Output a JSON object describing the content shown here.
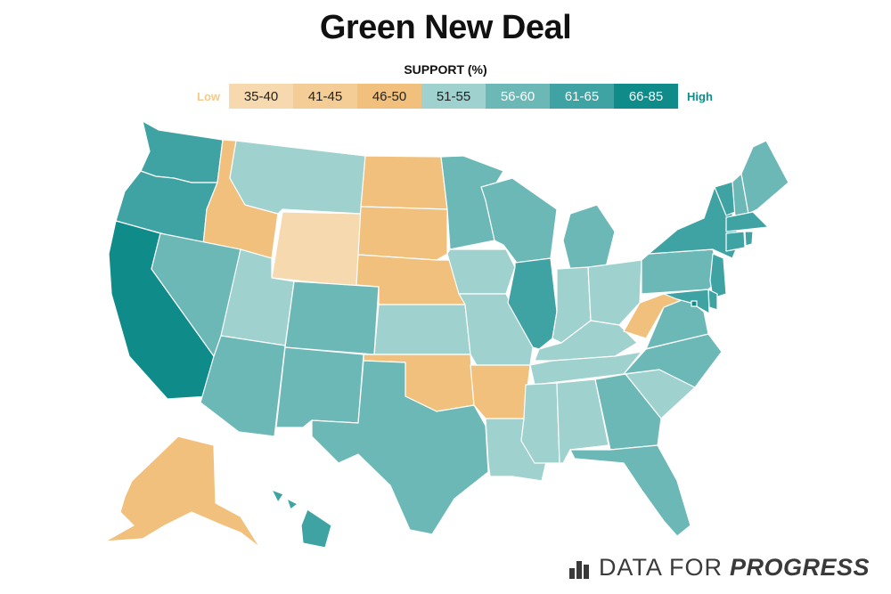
{
  "title": "Green New Deal",
  "legend": {
    "title": "SUPPORT (%)",
    "low_label": "Low",
    "high_label": "High",
    "low_color": "#f3c98c",
    "high_color": "#0f8c89",
    "bins": [
      {
        "label": "35-40",
        "color": "#f6d9ae",
        "text_color": "#222222"
      },
      {
        "label": "41-45",
        "color": "#f3cd95",
        "text_color": "#222222"
      },
      {
        "label": "46-50",
        "color": "#f1c07c",
        "text_color": "#222222"
      },
      {
        "label": "51-55",
        "color": "#9fd1ce",
        "text_color": "#222222"
      },
      {
        "label": "56-60",
        "color": "#6bb8b7",
        "text_color": "#ffffff"
      },
      {
        "label": "61-65",
        "color": "#3ea3a2",
        "text_color": "#ffffff"
      },
      {
        "label": "66-85",
        "color": "#0f8c89",
        "text_color": "#ffffff"
      }
    ]
  },
  "states": [
    {
      "state": "WA",
      "bin": 5
    },
    {
      "state": "OR",
      "bin": 5
    },
    {
      "state": "CA",
      "bin": 6
    },
    {
      "state": "ID",
      "bin": 2
    },
    {
      "state": "NV",
      "bin": 4
    },
    {
      "state": "MT",
      "bin": 3
    },
    {
      "state": "WY",
      "bin": 0
    },
    {
      "state": "UT",
      "bin": 3
    },
    {
      "state": "AZ",
      "bin": 4
    },
    {
      "state": "CO",
      "bin": 4
    },
    {
      "state": "NM",
      "bin": 4
    },
    {
      "state": "ND",
      "bin": 2
    },
    {
      "state": "SD",
      "bin": 2
    },
    {
      "state": "NE",
      "bin": 2
    },
    {
      "state": "KS",
      "bin": 3
    },
    {
      "state": "OK",
      "bin": 2
    },
    {
      "state": "TX",
      "bin": 4
    },
    {
      "state": "MN",
      "bin": 4
    },
    {
      "state": "IA",
      "bin": 3
    },
    {
      "state": "MO",
      "bin": 3
    },
    {
      "state": "AR",
      "bin": 2
    },
    {
      "state": "LA",
      "bin": 3
    },
    {
      "state": "WI",
      "bin": 4
    },
    {
      "state": "IL",
      "bin": 5
    },
    {
      "state": "MI",
      "bin": 4
    },
    {
      "state": "IN",
      "bin": 3
    },
    {
      "state": "OH",
      "bin": 3
    },
    {
      "state": "KY",
      "bin": 3
    },
    {
      "state": "TN",
      "bin": 3
    },
    {
      "state": "MS",
      "bin": 3
    },
    {
      "state": "AL",
      "bin": 3
    },
    {
      "state": "GA",
      "bin": 4
    },
    {
      "state": "FL",
      "bin": 4
    },
    {
      "state": "SC",
      "bin": 3
    },
    {
      "state": "NC",
      "bin": 4
    },
    {
      "state": "VA",
      "bin": 4
    },
    {
      "state": "WV",
      "bin": 2
    },
    {
      "state": "PA",
      "bin": 4
    },
    {
      "state": "NY",
      "bin": 5
    },
    {
      "state": "NJ",
      "bin": 5
    },
    {
      "state": "DE",
      "bin": 5
    },
    {
      "state": "MD",
      "bin": 5
    },
    {
      "state": "DC",
      "bin": 6
    },
    {
      "state": "VT",
      "bin": 5
    },
    {
      "state": "NH",
      "bin": 4
    },
    {
      "state": "ME",
      "bin": 4
    },
    {
      "state": "MA",
      "bin": 5
    },
    {
      "state": "CT",
      "bin": 5
    },
    {
      "state": "RI",
      "bin": 5
    },
    {
      "state": "AK",
      "bin": 2
    },
    {
      "state": "HI",
      "bin": 5
    }
  ],
  "footer": {
    "brand_plain": "DATA FOR",
    "brand_emphasis": "PROGRESS",
    "color": "#3a3a3a"
  }
}
